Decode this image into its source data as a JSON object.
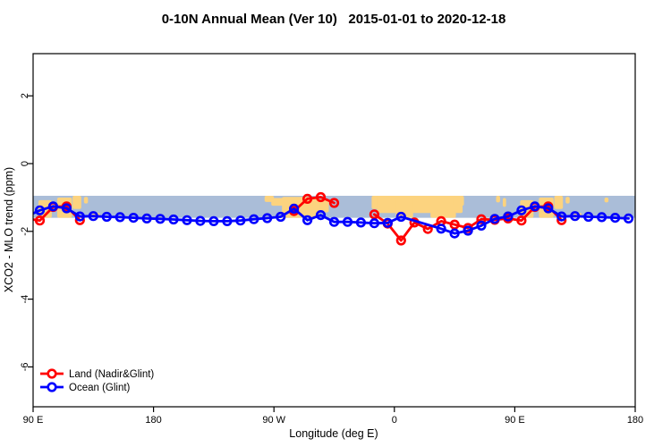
{
  "title": "0-10N Annual Mean (Ver 10)   2015-01-01 to 2020-12-18",
  "x_axis": {
    "label": "Longitude (deg E)",
    "span_deg": 450,
    "description": "wrapped longitude axis: 90E -> 180 -> 90W -> 0 -> 90E -> 180",
    "ticks": [
      {
        "pos": 0,
        "label": "90 E"
      },
      {
        "pos": 90,
        "label": "180"
      },
      {
        "pos": 180,
        "label": "90 W"
      },
      {
        "pos": 270,
        "label": "0"
      },
      {
        "pos": 360,
        "label": "90 E"
      },
      {
        "pos": 450,
        "label": "180"
      }
    ]
  },
  "y_axis": {
    "label": "XCO2 - MLO trend (ppm)",
    "ticks": [
      2,
      0,
      -2,
      -4,
      -6
    ],
    "min": -7.2,
    "max": 3.25
  },
  "legend": {
    "items": [
      {
        "label": "Land (Nadir&Glint)",
        "color": "#ff0000"
      },
      {
        "label": "Ocean (Glint)",
        "color": "#0000ff"
      }
    ]
  },
  "colors": {
    "ocean_band": "#aabdd8",
    "land_fill": "#fcd37f",
    "land_series": "#ff0000",
    "ocean_series": "#0000ff",
    "frame": "#000000"
  },
  "chart_data": {
    "type": "line",
    "title": "0-10N Annual Mean (Ver 10)   2015-01-01 to 2020-12-18",
    "xlabel": "Longitude (deg E)",
    "ylabel": "XCO2 - MLO trend (ppm)",
    "x_unit": "degrees east of 90E along wrapped axis (0..450)",
    "x_span": 450,
    "ylim": [
      -7.2,
      3.25
    ],
    "band": {
      "y_top": -0.95,
      "y_bottom": -1.6,
      "meaning": "0-10N latitude world-map strip (ocean)",
      "color": "#aabdd8"
    },
    "land_map_rects": [
      [
        4,
        14,
        0.2,
        1.0
      ],
      [
        18,
        29,
        0.08,
        1.0
      ],
      [
        29.5,
        36,
        0.0,
        0.6
      ],
      [
        38,
        41,
        0.05,
        0.35
      ],
      [
        44,
        50,
        0.78,
        1.0
      ],
      [
        173,
        180,
        0.0,
        0.28
      ],
      [
        178,
        188,
        0.1,
        0.45
      ],
      [
        186,
        214,
        0.05,
        1.0
      ],
      [
        214,
        221,
        0.15,
        0.75
      ],
      [
        253,
        267,
        0.0,
        0.6
      ],
      [
        257,
        321,
        0.0,
        0.78
      ],
      [
        271,
        284,
        0.0,
        1.0
      ],
      [
        297,
        316,
        0.0,
        1.0
      ],
      [
        314,
        322,
        0.0,
        0.45
      ],
      [
        346,
        349,
        0.0,
        0.3
      ],
      [
        351,
        353.5,
        0.1,
        0.5
      ],
      [
        364,
        374,
        0.2,
        1.0
      ],
      [
        378,
        389,
        0.08,
        1.0
      ],
      [
        389.5,
        396,
        0.0,
        0.6
      ],
      [
        398,
        401,
        0.05,
        0.35
      ],
      [
        404,
        410,
        0.78,
        1.0
      ],
      [
        427,
        430,
        0.08,
        0.3
      ]
    ],
    "series": [
      {
        "name": "Land (Nadir&Glint)",
        "color": "#ff0000",
        "segments": [
          [
            [
              -5,
              -1.62
            ],
            [
              5,
              -1.68
            ],
            [
              15,
              -1.28
            ],
            [
              25,
              -1.26
            ],
            [
              35,
              -1.67
            ]
          ],
          [
            [
              195,
              -1.4
            ],
            [
              205,
              -1.04
            ],
            [
              215,
              -0.99
            ],
            [
              225,
              -1.16
            ]
          ],
          [
            [
              255,
              -1.5
            ],
            [
              265,
              -1.77
            ],
            [
              275,
              -2.27
            ],
            [
              285,
              -1.74
            ],
            [
              295,
              -1.93
            ],
            [
              305,
              -1.7
            ],
            [
              315,
              -1.8
            ],
            [
              325,
              -1.9
            ],
            [
              335,
              -1.64
            ],
            [
              345,
              -1.66
            ],
            [
              355,
              -1.62
            ],
            [
              365,
              -1.68
            ],
            [
              375,
              -1.28
            ],
            [
              385,
              -1.26
            ],
            [
              395,
              -1.67
            ]
          ]
        ]
      },
      {
        "name": "Ocean (Glint)",
        "color": "#0000ff",
        "segments": [
          [
            [
              -5,
              -1.56
            ],
            [
              5,
              -1.38
            ],
            [
              15,
              -1.26
            ],
            [
              25,
              -1.32
            ],
            [
              35,
              -1.56
            ],
            [
              45,
              -1.55
            ],
            [
              55,
              -1.57
            ],
            [
              65,
              -1.58
            ],
            [
              75,
              -1.6
            ],
            [
              85,
              -1.62
            ],
            [
              95,
              -1.63
            ],
            [
              105,
              -1.65
            ],
            [
              115,
              -1.67
            ],
            [
              125,
              -1.69
            ],
            [
              135,
              -1.7
            ],
            [
              145,
              -1.7
            ],
            [
              155,
              -1.68
            ],
            [
              165,
              -1.64
            ],
            [
              175,
              -1.61
            ],
            [
              185,
              -1.57
            ],
            [
              195,
              -1.33
            ],
            [
              205,
              -1.67
            ],
            [
              215,
              -1.52
            ],
            [
              225,
              -1.72
            ],
            [
              235,
              -1.72
            ],
            [
              245,
              -1.74
            ],
            [
              255,
              -1.76
            ],
            [
              265,
              -1.75
            ],
            [
              275,
              -1.57
            ],
            [
              305,
              -1.92
            ],
            [
              315,
              -2.06
            ],
            [
              325,
              -1.98
            ],
            [
              335,
              -1.83
            ],
            [
              345,
              -1.63
            ],
            [
              355,
              -1.56
            ],
            [
              365,
              -1.38
            ],
            [
              375,
              -1.26
            ],
            [
              385,
              -1.32
            ],
            [
              395,
              -1.56
            ],
            [
              405,
              -1.55
            ],
            [
              415,
              -1.57
            ],
            [
              425,
              -1.58
            ],
            [
              435,
              -1.6
            ],
            [
              445,
              -1.62
            ]
          ]
        ]
      }
    ]
  }
}
